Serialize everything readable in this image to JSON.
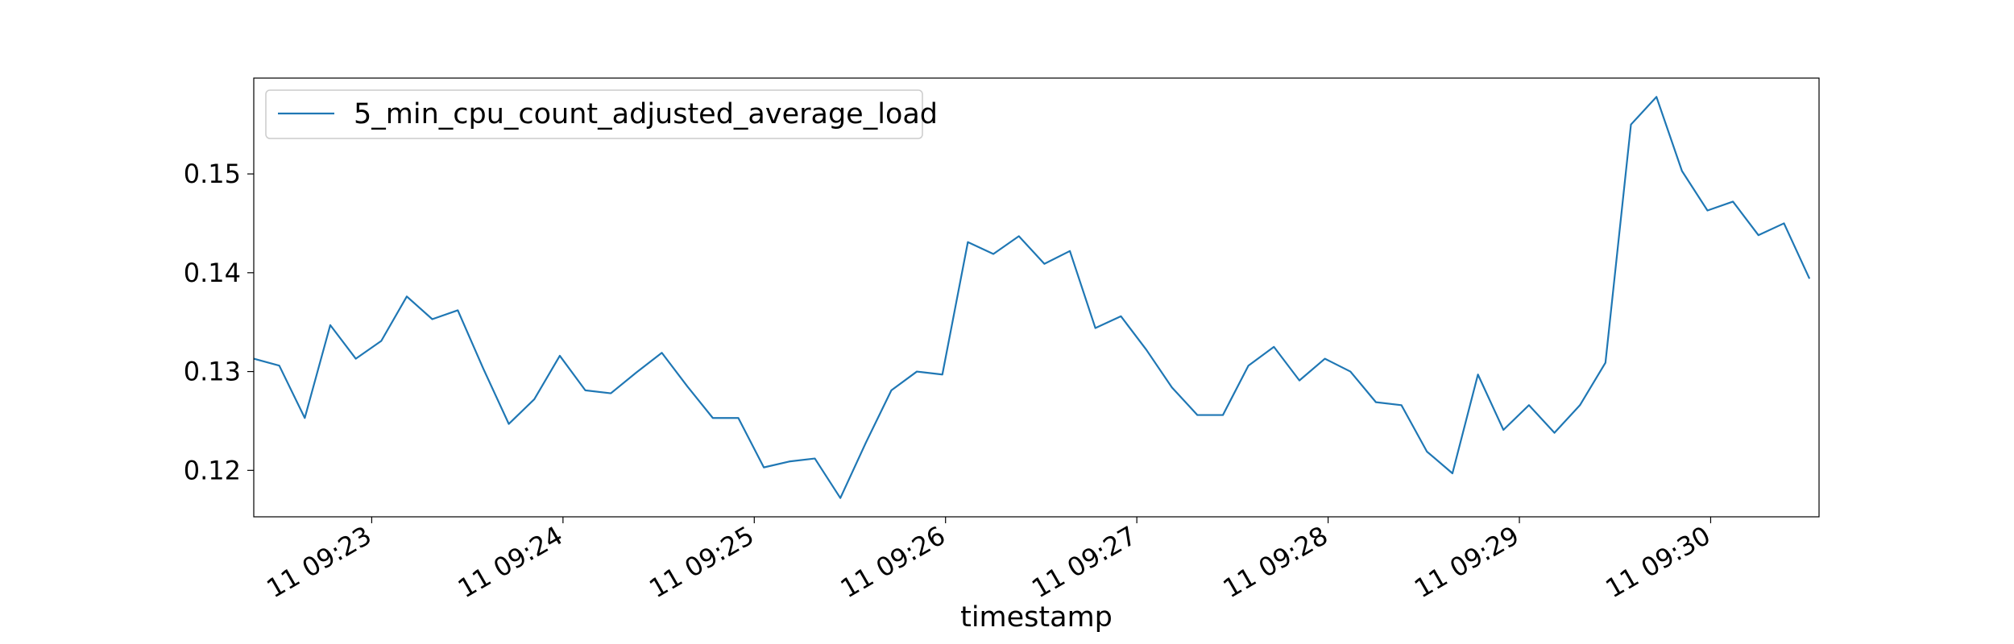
{
  "chart_data": {
    "type": "line",
    "title": "",
    "xlabel": "timestamp",
    "ylabel": "",
    "grid": false,
    "legend_position": "top-left",
    "line_color": "#1f77b4",
    "xlim": [
      "09:22:23",
      "09:30:34"
    ],
    "ylim": [
      0.1153,
      0.1597
    ],
    "x_ticks": [
      {
        "value": "09:23:00",
        "label": "11 09:23"
      },
      {
        "value": "09:24:00",
        "label": "11 09:24"
      },
      {
        "value": "09:25:00",
        "label": "11 09:25"
      },
      {
        "value": "09:26:00",
        "label": "11 09:26"
      },
      {
        "value": "09:27:00",
        "label": "11 09:27"
      },
      {
        "value": "09:28:00",
        "label": "11 09:28"
      },
      {
        "value": "09:29:00",
        "label": "11 09:29"
      },
      {
        "value": "09:30:00",
        "label": "11 09:30"
      }
    ],
    "y_ticks": [
      {
        "value": 0.12,
        "label": "0.12"
      },
      {
        "value": 0.13,
        "label": "0.13"
      },
      {
        "value": 0.14,
        "label": "0.14"
      },
      {
        "value": 0.15,
        "label": "0.15"
      }
    ],
    "series": [
      {
        "name": "5_min_cpu_count_adjusted_average_load",
        "x": [
          "09:22:23",
          "09:22:31",
          "09:22:39",
          "09:22:47",
          "09:22:55",
          "09:23:03",
          "09:23:11",
          "09:23:19",
          "09:23:27",
          "09:23:35",
          "09:23:43",
          "09:23:51",
          "09:23:59",
          "09:24:07",
          "09:24:15",
          "09:24:23",
          "09:24:31",
          "09:24:39",
          "09:24:47",
          "09:24:55",
          "09:25:03",
          "09:25:11",
          "09:25:19",
          "09:25:27",
          "09:25:35",
          "09:25:43",
          "09:25:51",
          "09:25:59",
          "09:26:07",
          "09:26:15",
          "09:26:23",
          "09:26:31",
          "09:26:39",
          "09:26:47",
          "09:26:55",
          "09:27:03",
          "09:27:11",
          "09:27:19",
          "09:27:27",
          "09:27:35",
          "09:27:43",
          "09:27:51",
          "09:27:59",
          "09:28:07",
          "09:28:15",
          "09:28:23",
          "09:28:31",
          "09:28:39",
          "09:28:47",
          "09:28:55",
          "09:29:03",
          "09:29:11",
          "09:29:19",
          "09:29:27",
          "09:29:35",
          "09:29:43",
          "09:29:51",
          "09:29:59",
          "09:30:07",
          "09:30:15",
          "09:30:23",
          "09:30:31"
        ],
        "values": [
          0.1313,
          0.1306,
          0.1253,
          0.1347,
          0.1313,
          0.1331,
          0.1376,
          0.1353,
          0.1362,
          0.1303,
          0.1247,
          0.1272,
          0.1316,
          0.1281,
          0.1278,
          0.1299,
          0.1319,
          0.1285,
          0.1253,
          0.1253,
          0.1203,
          0.1209,
          0.1212,
          0.1172,
          0.1228,
          0.1281,
          0.13,
          0.1297,
          0.1431,
          0.1419,
          0.1437,
          0.1409,
          0.1422,
          0.1344,
          0.1356,
          0.1322,
          0.1284,
          0.1256,
          0.1256,
          0.1306,
          0.1325,
          0.1291,
          0.1313,
          0.13,
          0.1269,
          0.1266,
          0.1219,
          0.1197,
          0.1297,
          0.1241,
          0.1266,
          0.1238,
          0.1266,
          0.1309,
          0.155,
          0.1578,
          0.1503,
          0.1463,
          0.1472,
          0.1438,
          0.145,
          0.1394
        ]
      }
    ]
  }
}
